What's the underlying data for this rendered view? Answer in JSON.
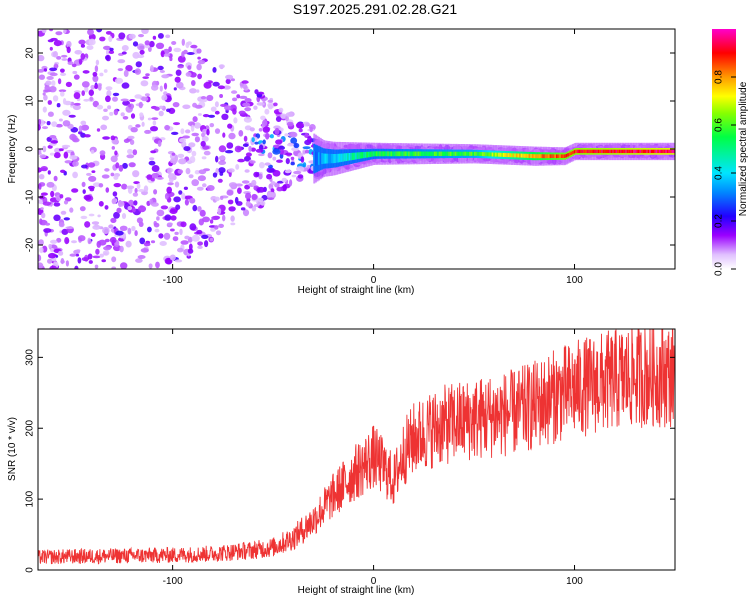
{
  "title": "S197.2025.291.02.28.G21",
  "chart_data": [
    {
      "type": "heatmap",
      "title": "S197.2025.291.02.28.G21",
      "xlabel": "Height of straight line (km)",
      "ylabel": "Frequency (Hz)",
      "xlim": [
        -167,
        150
      ],
      "ylim": [
        -25,
        25
      ],
      "xticks": [
        -100,
        0,
        100
      ],
      "yticks": [
        -20,
        -10,
        0,
        10,
        20
      ],
      "colorbar": {
        "label": "Normalized spectral amplitude",
        "range": [
          0,
          1
        ],
        "ticks": [
          "0.0",
          "0.2",
          "0.4",
          "0.6",
          "0.8"
        ],
        "colors": [
          "#ffffff",
          "#d8b4ff",
          "#8f00ff",
          "#2200ff",
          "#0088ff",
          "#00e5ff",
          "#00ff66",
          "#66ff00",
          "#ffff00",
          "#ff9900",
          "#ff0000",
          "#ff00cc"
        ]
      },
      "description_points": [
        {
          "x": -150,
          "spread_hz": 25,
          "amplitude": 0.1
        },
        {
          "x": -100,
          "spread_hz": 25,
          "amplitude": 0.1
        },
        {
          "x": -50,
          "spread_hz": 10,
          "amplitude": 0.2
        },
        {
          "x": -25,
          "spread_hz": 3,
          "amplitude": 0.35
        },
        {
          "x": 0,
          "spread_hz": 1.5,
          "amplitude": 0.55
        },
        {
          "x": 50,
          "spread_hz": 1.2,
          "amplitude": 0.6
        },
        {
          "x": 80,
          "spread_hz": 1.2,
          "amplitude": 0.8
        },
        {
          "x": 100,
          "spread_hz": 1.0,
          "amplitude": 0.9
        },
        {
          "x": 150,
          "spread_hz": 1.0,
          "amplitude": 0.95
        }
      ],
      "line_freq_hz": [
        {
          "x": -20,
          "f": -2
        },
        {
          "x": 0,
          "f": -1
        },
        {
          "x": 50,
          "f": -1
        },
        {
          "x": 80,
          "f": -1.5
        },
        {
          "x": 95,
          "f": -1.5
        },
        {
          "x": 100,
          "f": -0.5
        },
        {
          "x": 150,
          "f": -0.5
        }
      ]
    },
    {
      "type": "line",
      "xlabel": "Height of straight line (km)",
      "ylabel": "SNR (10 * v/v)",
      "xlim": [
        -167,
        150
      ],
      "ylim": [
        0,
        340
      ],
      "xticks": [
        -100,
        0,
        100
      ],
      "yticks": [
        0,
        100,
        200,
        300
      ],
      "color": "#ee3333",
      "series": [
        {
          "name": "SNR",
          "x": [
            -167,
            -150,
            -125,
            -100,
            -80,
            -60,
            -50,
            -40,
            -30,
            -20,
            -10,
            0,
            5,
            10,
            15,
            20,
            30,
            40,
            50,
            60,
            70,
            80,
            90,
            100,
            110,
            120,
            130,
            140,
            150
          ],
          "values": [
            18,
            19,
            20,
            21,
            23,
            28,
            32,
            45,
            70,
            105,
            135,
            160,
            145,
            125,
            165,
            185,
            200,
            208,
            213,
            218,
            222,
            232,
            245,
            255,
            262,
            268,
            274,
            276,
            275
          ]
        }
      ]
    }
  ]
}
